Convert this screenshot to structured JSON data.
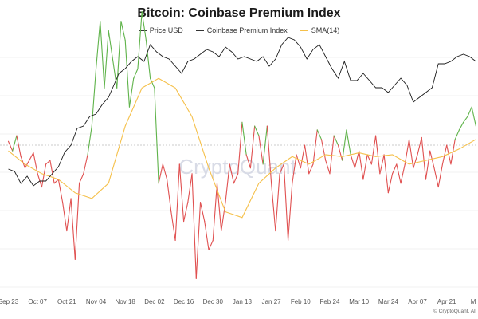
{
  "page": {
    "title": "Bitcoin: Coinbase Premium Index",
    "watermark": "CryptoQuant",
    "credit": "© CryptoQuant. All"
  },
  "colors": {
    "price": "#1a1a1a",
    "premium_positive": "#5fb34a",
    "premium_negative": "#e05050",
    "sma": "#f5c04a",
    "zero_line": "#bbbbbb",
    "grid": "#f0f0f0",
    "watermark": "#d8dbe6"
  },
  "chart_data": {
    "type": "line",
    "title": "Bitcoin: Coinbase Premium Index",
    "legend": {
      "position": "top-center",
      "items": [
        {
          "key": "price",
          "label": "Price USD",
          "color": "#1a1a1a"
        },
        {
          "key": "premium",
          "label": "Coinbase Premium Index",
          "color": "#1a1a1a"
        },
        {
          "key": "sma",
          "label": "SMA(14)",
          "color": "#f5c04a"
        }
      ]
    },
    "x_labels": [
      "Sep 23",
      "Oct 07",
      "Oct 21",
      "Nov 04",
      "Nov 18",
      "Dec 02",
      "Dec 16",
      "Dec 30",
      "Jan 13",
      "Jan 27",
      "Feb 10",
      "Feb 24",
      "Mar 10",
      "Mar 24",
      "Apr 07",
      "Apr 21",
      "M"
    ],
    "x_range_days": [
      -4,
      225
    ],
    "grid": true,
    "price_series": {
      "name": "Price USD",
      "x_days": [
        0,
        3,
        6,
        9,
        12,
        15,
        18,
        21,
        24,
        27,
        30,
        33,
        36,
        39,
        42,
        45,
        48,
        50,
        53,
        56,
        59,
        62,
        65,
        68,
        71,
        74,
        77,
        80,
        83,
        86,
        89,
        92,
        95,
        98,
        101,
        104,
        107,
        110,
        113,
        116,
        119,
        122,
        125,
        128,
        131,
        134,
        137,
        140,
        143,
        146,
        149,
        152,
        155,
        158,
        161,
        164,
        167,
        170,
        173,
        176,
        179,
        182,
        185,
        188,
        191,
        194,
        197,
        200,
        203,
        206,
        209,
        212,
        215,
        218,
        221,
        224
      ],
      "values": [
        50,
        49,
        44,
        47,
        43,
        45,
        45,
        48,
        51,
        57,
        60,
        67,
        68,
        72,
        73,
        77,
        80,
        84,
        90,
        92,
        95,
        97,
        95,
        102,
        99,
        97,
        96,
        93,
        90,
        95,
        96,
        98,
        100,
        99,
        97,
        101,
        99,
        96,
        97,
        96,
        95,
        97,
        93,
        96,
        102,
        105,
        104,
        101,
        96,
        100,
        102,
        97,
        92,
        88,
        95,
        87,
        87,
        90,
        87,
        84,
        84,
        82,
        85,
        88,
        85,
        78,
        80,
        82,
        84,
        94,
        94,
        95,
        97,
        98,
        97,
        95
      ]
    },
    "premium_series": {
      "name": "Coinbase Premium Index",
      "x_days": [
        0,
        2,
        4,
        6,
        8,
        10,
        12,
        14,
        16,
        18,
        20,
        22,
        24,
        26,
        28,
        30,
        32,
        34,
        36,
        38,
        40,
        42,
        44,
        46,
        48,
        50,
        52,
        54,
        56,
        58,
        60,
        62,
        64,
        66,
        68,
        70,
        72,
        74,
        76,
        78,
        80,
        82,
        84,
        86,
        88,
        90,
        92,
        94,
        96,
        98,
        100,
        102,
        104,
        106,
        108,
        110,
        112,
        114,
        116,
        118,
        120,
        122,
        124,
        126,
        128,
        130,
        132,
        134,
        136,
        138,
        140,
        142,
        144,
        146,
        148,
        150,
        152,
        154,
        156,
        158,
        160,
        162,
        164,
        166,
        168,
        170,
        172,
        174,
        176,
        178,
        180,
        182,
        184,
        186,
        188,
        190,
        192,
        194,
        196,
        198,
        200,
        202,
        204,
        206,
        208,
        210,
        212,
        214,
        216,
        218,
        220,
        222,
        224
      ],
      "values": [
        0.002,
        -0.003,
        0.005,
        -0.006,
        -0.012,
        -0.008,
        -0.004,
        -0.015,
        -0.022,
        -0.01,
        -0.008,
        -0.02,
        -0.018,
        -0.03,
        -0.045,
        -0.028,
        -0.06,
        -0.02,
        -0.015,
        -0.005,
        0.01,
        0.04,
        0.065,
        0.03,
        0.06,
        0.045,
        0.03,
        0.065,
        0.055,
        0.02,
        0.035,
        0.04,
        0.07,
        0.055,
        0.035,
        0.03,
        -0.02,
        -0.01,
        -0.018,
        -0.035,
        -0.05,
        -0.01,
        -0.04,
        -0.03,
        -0.015,
        -0.07,
        -0.03,
        -0.04,
        -0.055,
        -0.05,
        -0.02,
        -0.045,
        -0.03,
        -0.01,
        -0.02,
        -0.015,
        0.012,
        -0.005,
        -0.012,
        0.01,
        0.005,
        -0.01,
        0.01,
        -0.02,
        -0.045,
        -0.015,
        -0.01,
        -0.05,
        -0.02,
        -0.005,
        -0.012,
        0.0,
        -0.015,
        -0.01,
        0.008,
        0.003,
        -0.008,
        -0.015,
        0.005,
        0.0,
        -0.008,
        0.008,
        -0.005,
        -0.012,
        -0.003,
        -0.018,
        -0.005,
        -0.01,
        0.005,
        -0.015,
        -0.005,
        -0.025,
        -0.015,
        -0.01,
        -0.02,
        -0.01,
        0.003,
        -0.012,
        -0.005,
        0.004,
        -0.018,
        -0.003,
        -0.012,
        -0.022,
        -0.01,
        0.0,
        -0.01,
        0.003,
        0.008,
        0.012,
        0.015,
        0.02,
        0.01
      ]
    },
    "sma_series": {
      "name": "SMA(14)",
      "x_days": [
        0,
        8,
        16,
        24,
        32,
        40,
        48,
        56,
        64,
        72,
        80,
        88,
        96,
        104,
        112,
        120,
        128,
        136,
        144,
        152,
        160,
        168,
        176,
        184,
        192,
        200,
        208,
        216,
        224
      ],
      "values": [
        -0.003,
        -0.01,
        -0.015,
        -0.018,
        -0.025,
        -0.028,
        -0.02,
        0.01,
        0.03,
        0.035,
        0.03,
        0.015,
        -0.012,
        -0.035,
        -0.038,
        -0.02,
        -0.012,
        -0.006,
        -0.01,
        -0.005,
        -0.006,
        -0.004,
        -0.006,
        -0.005,
        -0.01,
        -0.008,
        -0.006,
        -0.002,
        0.003
      ]
    }
  }
}
